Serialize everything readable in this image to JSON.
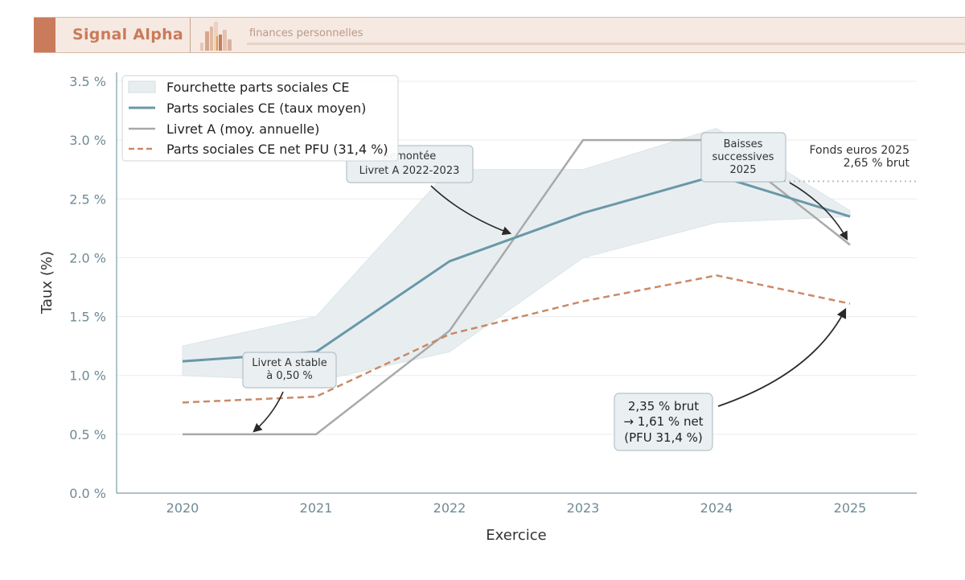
{
  "header": {
    "brand": "Signal Alpha",
    "tagline": "finances personnelles",
    "logo_icon": "bar-cluster-logo"
  },
  "colors": {
    "accent": "#c97b5b",
    "parts_sociales": "#6a98a8",
    "livret_a": "#a9a9a9",
    "net_pfu": "#c98a68",
    "band": "#e8eef0"
  },
  "chart_data": {
    "type": "line",
    "xlabel": "Exercice",
    "ylabel": "Taux (%)",
    "x": [
      "2020",
      "2021",
      "2022",
      "2023",
      "2024",
      "2025"
    ],
    "ylim": [
      0.0,
      3.5
    ],
    "yticks": [
      0.0,
      0.5,
      1.0,
      1.5,
      2.0,
      2.5,
      3.0,
      3.5
    ],
    "ytick_labels": [
      "0.0 %",
      "0.5 %",
      "1.0 %",
      "1.5 %",
      "2.0 %",
      "2.5 %",
      "3.0 %",
      "3.5 %"
    ],
    "grid": "horizontal",
    "legend_position": "top-left",
    "band": {
      "name": "Fourchette parts sociales CE",
      "lower": [
        1.0,
        0.95,
        1.2,
        2.0,
        2.3,
        2.35
      ],
      "upper": [
        1.25,
        1.5,
        2.75,
        2.75,
        3.1,
        2.4
      ]
    },
    "series": [
      {
        "name": "Parts sociales CE (taux moyen)",
        "style": "solid",
        "values": [
          1.12,
          1.2,
          1.97,
          2.38,
          2.7,
          2.35
        ]
      },
      {
        "name": "Livret A (moy. annuelle)",
        "style": "solid",
        "values": [
          0.5,
          0.5,
          1.38,
          3.0,
          3.0,
          2.11
        ]
      },
      {
        "name": "Parts sociales CE net PFU (31,4 %)",
        "style": "dashed",
        "values": [
          0.77,
          0.82,
          1.35,
          1.63,
          1.85,
          1.61
        ]
      }
    ],
    "reference": {
      "x_from": "2024",
      "x_to": "2025",
      "y": 2.65,
      "label_line1": "Fonds euros 2025",
      "label_line2": "2,65 % brut"
    },
    "annotations": [
      {
        "lines": [
          "Livret A stable",
          "à 0,50 %"
        ]
      },
      {
        "lines": [
          "Remontée",
          "Livret A 2022-2023"
        ]
      },
      {
        "lines": [
          "Baisses",
          "successives",
          "2025"
        ]
      },
      {
        "lines": [
          "2,35 % brut",
          "→ 1,61 % net",
          "(PFU 31,4 %)"
        ]
      }
    ]
  }
}
